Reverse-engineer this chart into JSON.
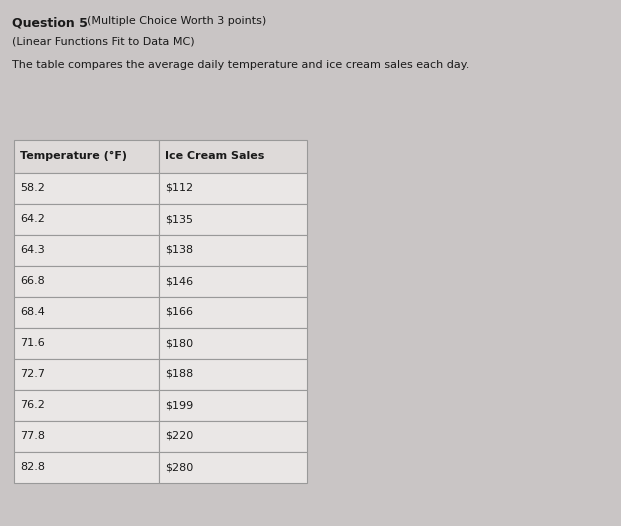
{
  "title_bold": "Question 5",
  "title_suffix": "(Multiple Choice Worth 3 points)",
  "subtitle": "(Linear Functions Fit to Data MC)",
  "description": "The table compares the average daily temperature and ice cream sales each day.",
  "col_headers": [
    "Temperature (°F)",
    "Ice Cream Sales"
  ],
  "rows": [
    [
      "58.2",
      "$112"
    ],
    [
      "64.2",
      "$135"
    ],
    [
      "64.3",
      "$138"
    ],
    [
      "66.8",
      "$146"
    ],
    [
      "68.4",
      "$166"
    ],
    [
      "71.6",
      "$180"
    ],
    [
      "72.7",
      "$188"
    ],
    [
      "76.2",
      "$199"
    ],
    [
      "77.8",
      "$220"
    ],
    [
      "82.8",
      "$280"
    ]
  ],
  "page_bg": "#c9c5c5",
  "header_bg": "#dedad9",
  "cell_bg": "#eae7e6",
  "table_border_color": "#999999",
  "text_color": "#1a1a1a",
  "title_fontsize": 9,
  "body_fontsize": 8,
  "table_fontsize": 8
}
